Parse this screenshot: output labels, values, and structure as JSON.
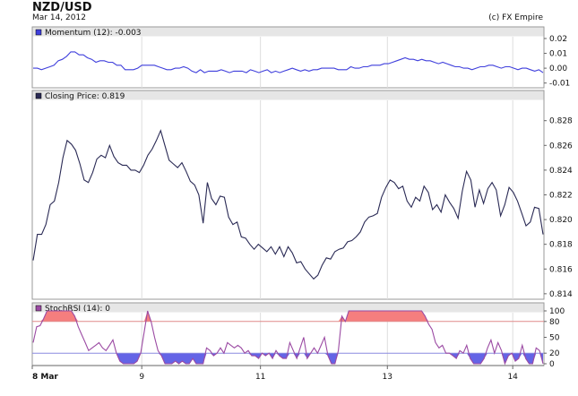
{
  "header": {
    "title": "NZD/USD",
    "date": "Mar 14, 2012",
    "copyright": "(c) FX Empire"
  },
  "colors": {
    "momentum": "#3f3fdc",
    "closing": "#2a2a55",
    "stoch": "#9b4aa3",
    "overbought_fill": "#f57e7e",
    "oversold_fill": "#6464e6",
    "line80": "#e08a8a",
    "line20": "#8a8ae0",
    "panel_header": "#e6e6e6",
    "grid": "#dddddd"
  },
  "chart_data": [
    {
      "type": "line",
      "name": "momentum",
      "title": "Momentum (12): -0.003",
      "yticks": [
        0.02,
        0.01,
        0.0,
        -0.01
      ],
      "ytick_labels": [
        "0.02",
        "0.01",
        "0.00",
        "-0.01"
      ],
      "ylim": [
        -0.012,
        0.023
      ],
      "values": [
        0.0,
        0.0,
        -0.001,
        0.0,
        0.001,
        0.002,
        0.005,
        0.006,
        0.008,
        0.011,
        0.011,
        0.009,
        0.009,
        0.007,
        0.006,
        0.004,
        0.005,
        0.005,
        0.004,
        0.004,
        0.002,
        0.002,
        -0.001,
        -0.001,
        -0.001,
        0.0,
        0.002,
        0.002,
        0.002,
        0.002,
        0.001,
        0.0,
        -0.001,
        -0.001,
        0.0,
        0.0,
        0.001,
        0.0,
        -0.002,
        -0.003,
        -0.001,
        -0.003,
        -0.002,
        -0.002,
        -0.002,
        -0.001,
        -0.002,
        -0.003,
        -0.002,
        -0.002,
        -0.002,
        -0.003,
        -0.001,
        -0.002,
        -0.003,
        -0.002,
        -0.001,
        -0.003,
        -0.002,
        -0.003,
        -0.002,
        -0.001,
        0.0,
        -0.001,
        -0.002,
        -0.001,
        -0.002,
        -0.001,
        -0.001,
        0.0,
        0.0,
        0.0,
        0.0,
        -0.001,
        -0.001,
        -0.001,
        0.001,
        0.0,
        0.0,
        0.001,
        0.001,
        0.002,
        0.002,
        0.002,
        0.003,
        0.003,
        0.004,
        0.005,
        0.006,
        0.007,
        0.006,
        0.006,
        0.005,
        0.006,
        0.005,
        0.005,
        0.004,
        0.003,
        0.004,
        0.003,
        0.002,
        0.001,
        0.001,
        0.0,
        0.0,
        -0.001,
        0.0,
        0.001,
        0.001,
        0.002,
        0.002,
        0.001,
        0.0,
        0.001,
        0.001,
        0.0,
        -0.001,
        0.0,
        0.0,
        -0.001,
        -0.002,
        -0.001,
        -0.003
      ]
    },
    {
      "type": "line",
      "name": "closing",
      "title": "Closing Price: 0.819",
      "yticks": [
        0.828,
        0.826,
        0.824,
        0.822,
        0.82,
        0.818,
        0.816,
        0.814
      ],
      "ytick_labels": [
        "0.828",
        "0.826",
        "0.824",
        "0.822",
        "0.820",
        "0.818",
        "0.816",
        "0.814"
      ],
      "ylim": [
        0.8137,
        0.8295
      ],
      "values": [
        0.8167,
        0.8188,
        0.8188,
        0.8196,
        0.8212,
        0.8215,
        0.823,
        0.825,
        0.8264,
        0.8261,
        0.8256,
        0.8245,
        0.8232,
        0.823,
        0.8238,
        0.8249,
        0.8252,
        0.825,
        0.826,
        0.8251,
        0.8246,
        0.8244,
        0.8244,
        0.824,
        0.824,
        0.8238,
        0.8244,
        0.8252,
        0.8257,
        0.8264,
        0.8272,
        0.826,
        0.8248,
        0.8245,
        0.8242,
        0.8246,
        0.8239,
        0.8231,
        0.8228,
        0.822,
        0.8197,
        0.823,
        0.8217,
        0.8212,
        0.8219,
        0.8218,
        0.8202,
        0.8196,
        0.8198,
        0.8186,
        0.8185,
        0.818,
        0.8176,
        0.818,
        0.8177,
        0.8174,
        0.8178,
        0.8172,
        0.8178,
        0.817,
        0.8178,
        0.8173,
        0.8165,
        0.8166,
        0.816,
        0.8156,
        0.8152,
        0.8155,
        0.8163,
        0.8169,
        0.8168,
        0.8174,
        0.8176,
        0.8177,
        0.8182,
        0.8183,
        0.8186,
        0.819,
        0.8198,
        0.8202,
        0.8203,
        0.8205,
        0.8218,
        0.8226,
        0.8232,
        0.823,
        0.8225,
        0.8227,
        0.8215,
        0.821,
        0.8218,
        0.8215,
        0.8227,
        0.8222,
        0.8208,
        0.8212,
        0.8206,
        0.822,
        0.8214,
        0.8209,
        0.8201,
        0.8223,
        0.8239,
        0.8232,
        0.821,
        0.8224,
        0.8213,
        0.8225,
        0.823,
        0.8224,
        0.8203,
        0.8212,
        0.8226,
        0.8222,
        0.8215,
        0.8205,
        0.8195,
        0.8198,
        0.821,
        0.8209,
        0.8188
      ]
    },
    {
      "type": "area",
      "name": "stochrsi",
      "title": "StochRSI (14): 0",
      "yticks": [
        100,
        80,
        50,
        20,
        0
      ],
      "ytick_labels": [
        "100",
        "80",
        "50",
        "20",
        "0"
      ],
      "ylim": [
        0,
        100
      ],
      "overbought": 80,
      "oversold": 20,
      "values": [
        40,
        70,
        72,
        85,
        100,
        100,
        100,
        100,
        100,
        100,
        100,
        100,
        90,
        70,
        55,
        40,
        25,
        30,
        35,
        40,
        30,
        25,
        35,
        45,
        20,
        5,
        0,
        0,
        0,
        0,
        5,
        20,
        60,
        100,
        80,
        50,
        25,
        15,
        0,
        0,
        0,
        5,
        0,
        5,
        0,
        0,
        10,
        0,
        0,
        0,
        30,
        25,
        15,
        20,
        30,
        20,
        40,
        35,
        30,
        35,
        30,
        20,
        25,
        15,
        15,
        10,
        20,
        15,
        20,
        10,
        25,
        15,
        10,
        10,
        40,
        25,
        10,
        30,
        50,
        10,
        20,
        30,
        20,
        35,
        50,
        15,
        0,
        0,
        25,
        90,
        80,
        100,
        100,
        100,
        100,
        100,
        100,
        100,
        100,
        100,
        100,
        100,
        100,
        100,
        100,
        100,
        100,
        100,
        100,
        100,
        100,
        100,
        100,
        90,
        75,
        65,
        40,
        30,
        35,
        20,
        20,
        15,
        10,
        25,
        20,
        35,
        10,
        0,
        0,
        0,
        10,
        30,
        45,
        20,
        40,
        25,
        0,
        15,
        20,
        5,
        10,
        35,
        10,
        0,
        0,
        30,
        25,
        0
      ]
    }
  ],
  "x_axis": {
    "labels": [
      "8 Mar",
      "9",
      "11",
      "13",
      "14"
    ]
  }
}
